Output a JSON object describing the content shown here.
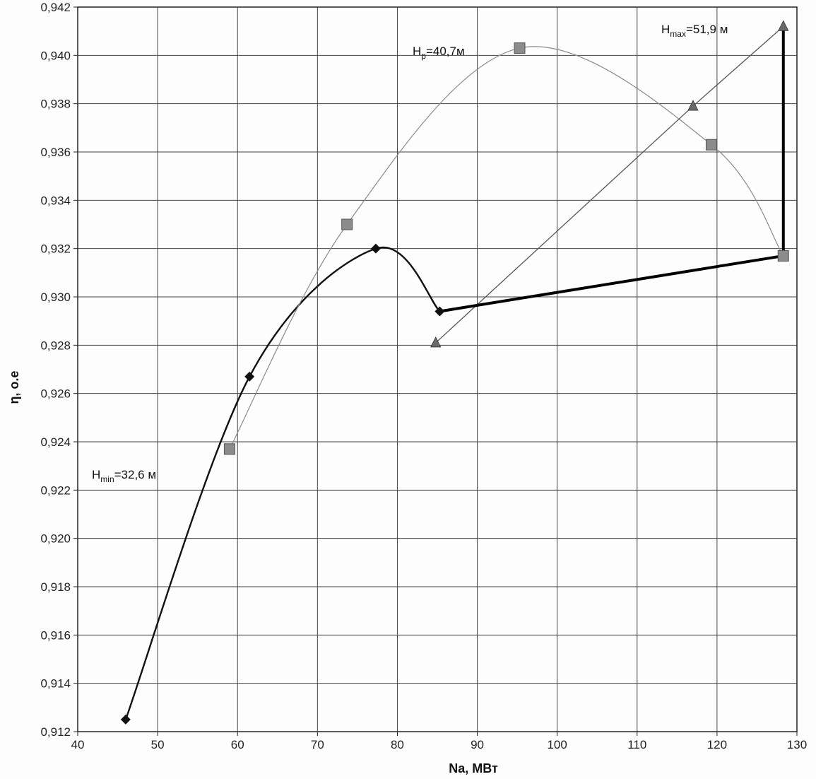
{
  "chart_data": {
    "type": "line",
    "title": "",
    "xlabel": "Na, МВт",
    "ylabel": "η, о.е",
    "xlim": [
      40,
      130
    ],
    "ylim": [
      0.912,
      0.942
    ],
    "x_ticks": [
      "40",
      "50",
      "60",
      "70",
      "80",
      "90",
      "100",
      "110",
      "120",
      "130"
    ],
    "y_ticks": [
      "0,912",
      "0,914",
      "0,916",
      "0,918",
      "0,920",
      "0,922",
      "0,924",
      "0,926",
      "0,928",
      "0,930",
      "0,932",
      "0,934",
      "0,936",
      "0,938",
      "0,940",
      "0,942"
    ],
    "grid": true,
    "series": [
      {
        "label_main": "H",
        "label_sub": "min",
        "label_rest": "=32,6 м",
        "marker": "diamond",
        "color": "#111111",
        "points": [
          {
            "x": 46.0,
            "y": 0.9125
          },
          {
            "x": 61.5,
            "y": 0.9267
          },
          {
            "x": 77.3,
            "y": 0.932
          },
          {
            "x": 85.3,
            "y": 0.9294
          }
        ]
      },
      {
        "label_main": "H",
        "label_sub": "p",
        "label_rest": "=40,7м",
        "marker": "square",
        "color": "#8a8a8a",
        "points": [
          {
            "x": 59.0,
            "y": 0.9237
          },
          {
            "x": 73.7,
            "y": 0.933
          },
          {
            "x": 95.3,
            "y": 0.9403
          },
          {
            "x": 119.3,
            "y": 0.9363
          },
          {
            "x": 128.3,
            "y": 0.9317
          }
        ]
      },
      {
        "label_main": "H",
        "label_sub": "max",
        "label_rest": "=51,9 м",
        "marker": "triangle",
        "color": "#555555",
        "points": [
          {
            "x": 84.8,
            "y": 0.9281
          },
          {
            "x": 117.0,
            "y": 0.9379
          },
          {
            "x": 128.3,
            "y": 0.9412
          }
        ]
      }
    ],
    "envelope": {
      "color": "#000000",
      "points": [
        {
          "x": 85.3,
          "y": 0.9294
        },
        {
          "x": 128.3,
          "y": 0.9317
        },
        {
          "x": 128.3,
          "y": 0.9412
        }
      ]
    }
  }
}
